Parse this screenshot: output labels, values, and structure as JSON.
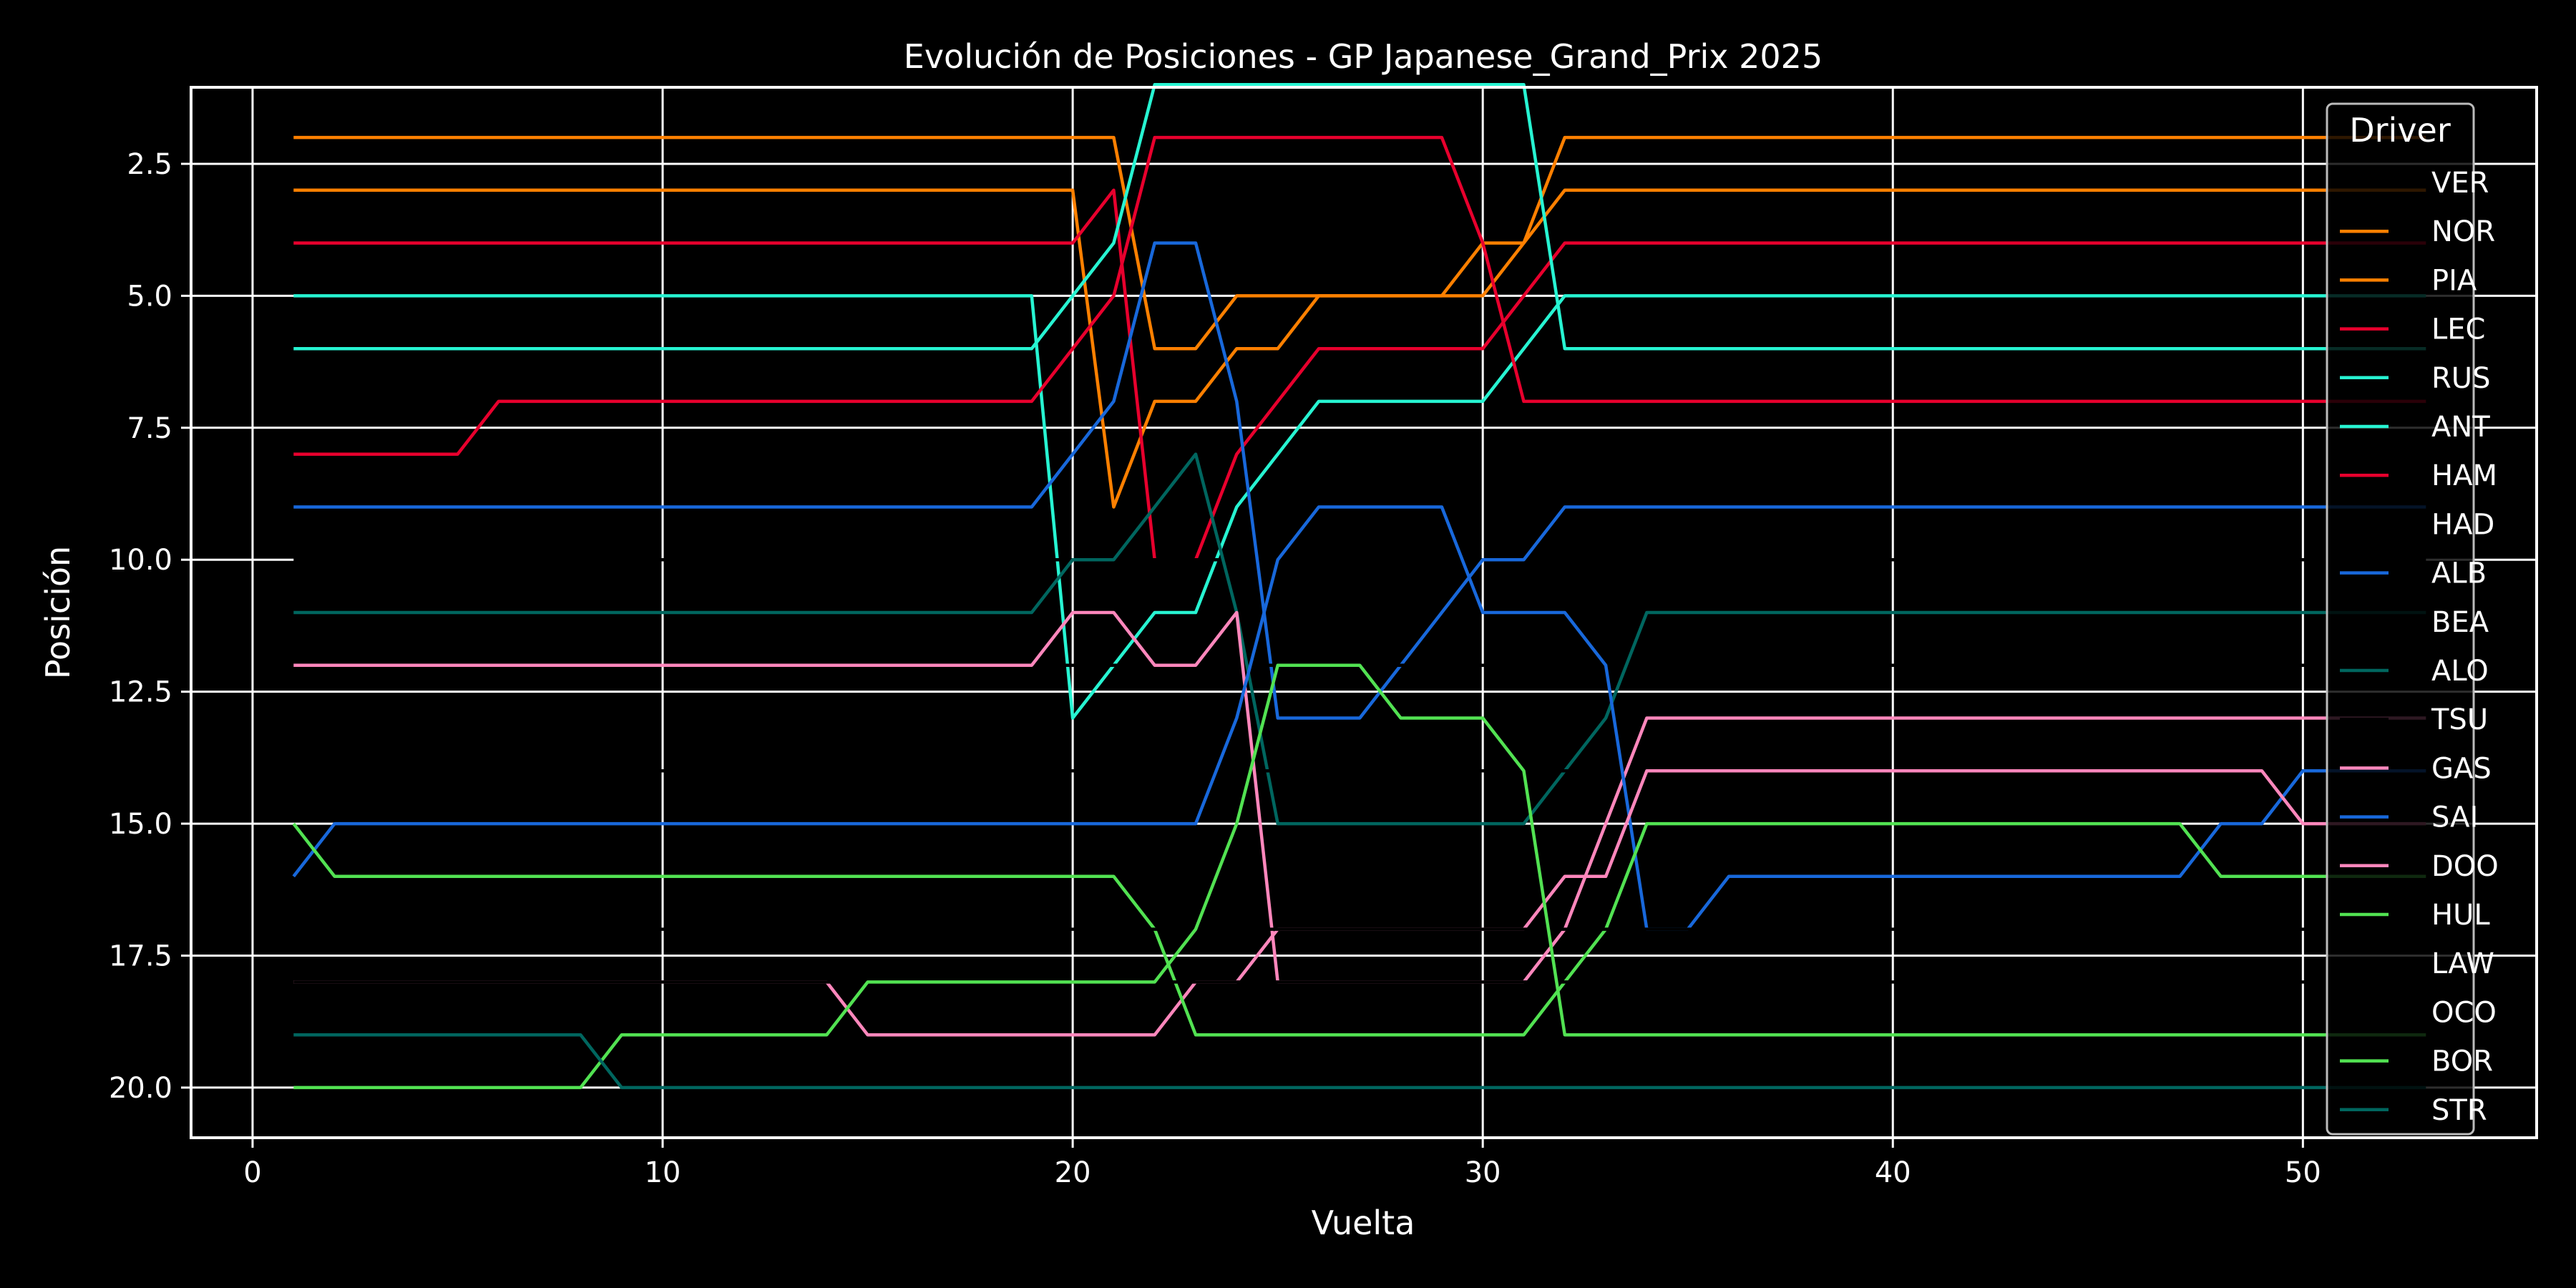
{
  "chart_data": {
    "type": "line",
    "title": "Evolución de Posiciones - GP Japanese_Grand_Prix 2025",
    "xlabel": "Vuelta",
    "ylabel": "Posición",
    "xlim": [
      -1.5,
      55.7
    ],
    "ylim": [
      20.95,
      1.05
    ],
    "y_inverted": true,
    "x_ticks": [
      0,
      10,
      20,
      30,
      40,
      50
    ],
    "x_tick_labels": [
      "0",
      "10",
      "20",
      "30",
      "40",
      "50"
    ],
    "y_ticks": [
      2.5,
      5.0,
      7.5,
      10.0,
      12.5,
      15.0,
      17.5,
      20.0
    ],
    "y_tick_labels": [
      "2.5",
      "5.0",
      "7.5",
      "10.0",
      "12.5",
      "15.0",
      "17.5",
      "20.0"
    ],
    "grid": true,
    "legend": {
      "title": "Driver",
      "position": "right"
    },
    "series": [
      {
        "name": "VER",
        "color": "#000000",
        "points": [
          [
            1,
            1
          ],
          [
            53,
            1
          ]
        ]
      },
      {
        "name": "NOR",
        "color": "#ff8000",
        "points": [
          [
            1,
            2
          ],
          [
            21,
            2
          ],
          [
            22,
            6
          ],
          [
            23,
            6
          ],
          [
            24,
            5
          ],
          [
            30,
            5
          ],
          [
            31,
            4
          ],
          [
            32,
            3
          ],
          [
            53,
            3
          ]
        ]
      },
      {
        "name": "PIA",
        "color": "#ff8000",
        "points": [
          [
            1,
            3
          ],
          [
            20,
            3
          ],
          [
            21,
            9
          ],
          [
            22,
            7
          ],
          [
            23,
            7
          ],
          [
            24,
            6
          ],
          [
            25,
            6
          ],
          [
            26,
            5
          ],
          [
            29,
            5
          ],
          [
            30,
            4
          ],
          [
            31,
            4
          ],
          [
            32,
            2
          ],
          [
            53,
            2
          ]
        ]
      },
      {
        "name": "LEC",
        "color": "#e8002d",
        "points": [
          [
            1,
            4
          ],
          [
            20,
            4
          ],
          [
            21,
            3
          ],
          [
            22,
            10
          ],
          [
            23,
            10
          ],
          [
            24,
            8
          ],
          [
            25,
            7
          ],
          [
            26,
            6
          ],
          [
            30,
            6
          ],
          [
            31,
            5
          ],
          [
            32,
            4
          ],
          [
            53,
            4
          ]
        ]
      },
      {
        "name": "RUS",
        "color": "#27f4d2",
        "points": [
          [
            1,
            5
          ],
          [
            19,
            5
          ],
          [
            20,
            13
          ],
          [
            21,
            12
          ],
          [
            22,
            11
          ],
          [
            23,
            11
          ],
          [
            24,
            9
          ],
          [
            25,
            8
          ],
          [
            26,
            7
          ],
          [
            30,
            7
          ],
          [
            31,
            6
          ],
          [
            32,
            5
          ],
          [
            53,
            5
          ]
        ]
      },
      {
        "name": "ANT",
        "color": "#27f4d2",
        "points": [
          [
            1,
            6
          ],
          [
            19,
            6
          ],
          [
            20,
            5
          ],
          [
            21,
            4
          ],
          [
            22,
            1
          ],
          [
            31,
            1
          ],
          [
            32,
            6
          ],
          [
            53,
            6
          ]
        ]
      },
      {
        "name": "HAM",
        "color": "#e8002d",
        "points": [
          [
            1,
            8
          ],
          [
            5,
            8
          ],
          [
            6,
            7
          ],
          [
            19,
            7
          ],
          [
            20,
            6
          ],
          [
            21,
            5
          ],
          [
            22,
            2
          ],
          [
            29,
            2
          ],
          [
            30,
            4
          ],
          [
            31,
            7
          ],
          [
            53,
            7
          ]
        ]
      },
      {
        "name": "HAD",
        "color": "#000000",
        "points": [
          [
            1,
            10
          ],
          [
            53,
            10
          ]
        ]
      },
      {
        "name": "ALB",
        "color": "#1868db",
        "points": [
          [
            1,
            9
          ],
          [
            19,
            9
          ],
          [
            20,
            8
          ],
          [
            21,
            7
          ],
          [
            22,
            4
          ],
          [
            23,
            4
          ],
          [
            24,
            7
          ],
          [
            25,
            13
          ],
          [
            27,
            13
          ],
          [
            28,
            12
          ],
          [
            29,
            11
          ],
          [
            30,
            10
          ],
          [
            31,
            10
          ],
          [
            32,
            9
          ],
          [
            53,
            9
          ]
        ]
      },
      {
        "name": "BEA",
        "color": "#000000",
        "points": [
          [
            1,
            12
          ],
          [
            53,
            12
          ]
        ]
      },
      {
        "name": "ALO",
        "color": "#00665f",
        "points": [
          [
            1,
            11
          ],
          [
            19,
            11
          ],
          [
            20,
            10
          ],
          [
            21,
            10
          ],
          [
            22,
            9
          ],
          [
            23,
            8
          ],
          [
            24,
            11
          ],
          [
            25,
            15
          ],
          [
            31,
            15
          ],
          [
            32,
            14
          ],
          [
            33,
            13
          ],
          [
            34,
            11
          ],
          [
            53,
            11
          ]
        ]
      },
      {
        "name": "TSU",
        "color": "#000000",
        "points": [
          [
            1,
            14
          ],
          [
            53,
            14
          ]
        ]
      },
      {
        "name": "GAS",
        "color": "#ff87bc",
        "points": [
          [
            1,
            12
          ],
          [
            19,
            12
          ],
          [
            20,
            11
          ],
          [
            21,
            11
          ],
          [
            22,
            12
          ],
          [
            23,
            12
          ],
          [
            24,
            11
          ],
          [
            25,
            18
          ],
          [
            31,
            18
          ],
          [
            32,
            17
          ],
          [
            33,
            15
          ],
          [
            34,
            13
          ],
          [
            53,
            13
          ]
        ]
      },
      {
        "name": "SAI",
        "color": "#1868db",
        "points": [
          [
            1,
            16
          ],
          [
            2,
            15
          ],
          [
            23,
            15
          ],
          [
            24,
            13
          ],
          [
            25,
            10
          ],
          [
            26,
            9
          ],
          [
            29,
            9
          ],
          [
            30,
            11
          ],
          [
            32,
            11
          ],
          [
            33,
            12
          ],
          [
            34,
            17
          ],
          [
            35,
            17
          ],
          [
            36,
            16
          ],
          [
            47,
            16
          ],
          [
            48,
            15
          ],
          [
            49,
            15
          ],
          [
            50,
            14
          ],
          [
            53,
            14
          ]
        ]
      },
      {
        "name": "DOO",
        "color": "#ff87bc",
        "points": [
          [
            1,
            18
          ],
          [
            14,
            18
          ],
          [
            15,
            19
          ],
          [
            22,
            19
          ],
          [
            23,
            18
          ],
          [
            24,
            18
          ],
          [
            25,
            17
          ],
          [
            31,
            17
          ],
          [
            32,
            16
          ],
          [
            33,
            16
          ],
          [
            34,
            14
          ],
          [
            49,
            14
          ],
          [
            50,
            15
          ],
          [
            53,
            15
          ]
        ]
      },
      {
        "name": "HUL",
        "color": "#52e252",
        "points": [
          [
            1,
            15
          ],
          [
            2,
            16
          ],
          [
            21,
            16
          ],
          [
            22,
            17
          ],
          [
            23,
            19
          ],
          [
            31,
            19
          ],
          [
            32,
            18
          ],
          [
            33,
            17
          ],
          [
            34,
            15
          ],
          [
            47,
            15
          ],
          [
            48,
            16
          ],
          [
            53,
            16
          ]
        ]
      },
      {
        "name": "LAW",
        "color": "#000000",
        "points": [
          [
            1,
            17
          ],
          [
            53,
            17
          ]
        ]
      },
      {
        "name": "OCO",
        "color": "#000000",
        "points": [
          [
            1,
            18
          ],
          [
            53,
            18
          ]
        ]
      },
      {
        "name": "BOR",
        "color": "#52e252",
        "points": [
          [
            1,
            20
          ],
          [
            8,
            20
          ],
          [
            9,
            19
          ],
          [
            14,
            19
          ],
          [
            15,
            18
          ],
          [
            22,
            18
          ],
          [
            23,
            17
          ],
          [
            24,
            15
          ],
          [
            25,
            12
          ],
          [
            27,
            12
          ],
          [
            28,
            13
          ],
          [
            30,
            13
          ],
          [
            31,
            14
          ],
          [
            32,
            19
          ],
          [
            53,
            19
          ]
        ]
      },
      {
        "name": "STR",
        "color": "#00665f",
        "points": [
          [
            1,
            19
          ],
          [
            8,
            19
          ],
          [
            9,
            20
          ],
          [
            53,
            20
          ]
        ]
      }
    ]
  }
}
